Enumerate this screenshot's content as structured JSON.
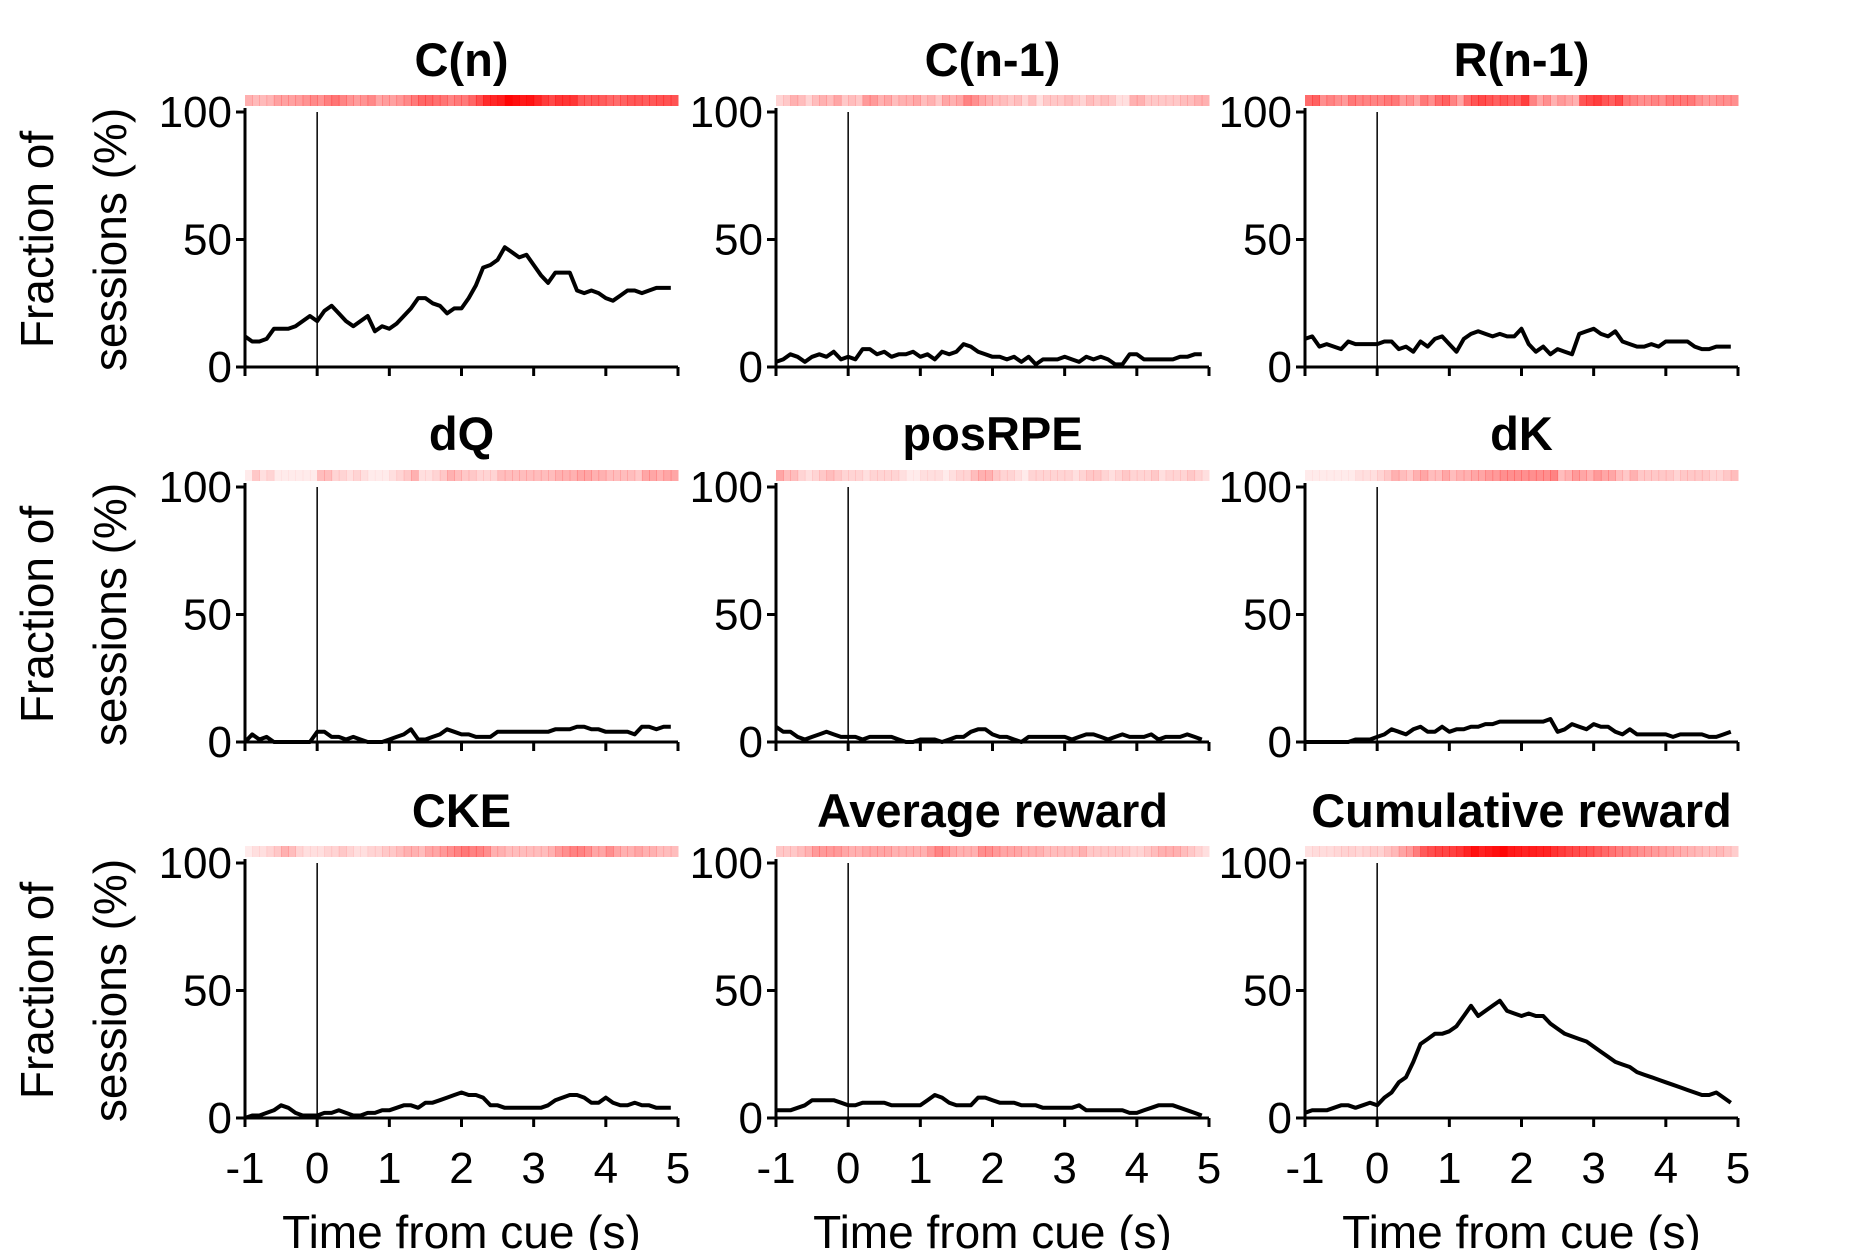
{
  "chart_data": {
    "type": "line",
    "layout": "3x3 grid of panels",
    "xlabel": "Time from cue (s)",
    "ylabel": "Fraction of sessions (%)",
    "ylabel_lines": [
      "Fraction of",
      "sessions (%)"
    ],
    "xlim": [
      -1,
      5
    ],
    "ylim": [
      0,
      100
    ],
    "xticks": [
      -1,
      0,
      1,
      2,
      3,
      4,
      5
    ],
    "yticks": [
      0,
      50,
      100
    ],
    "xtick_labels": [
      "-1",
      "0",
      "1",
      "2",
      "3",
      "4",
      "5"
    ],
    "ytick_labels": [
      "0",
      "50",
      "100"
    ],
    "cue_line_x": 0,
    "line_color": "#000000",
    "heat_color": "#ff0000",
    "x": [
      -1.0,
      -0.9,
      -0.8,
      -0.7,
      -0.6,
      -0.5,
      -0.4,
      -0.3,
      -0.2,
      -0.1,
      0.0,
      0.1,
      0.2,
      0.3,
      0.4,
      0.5,
      0.6,
      0.7,
      0.8,
      0.9,
      1.0,
      1.1,
      1.2,
      1.3,
      1.4,
      1.5,
      1.6,
      1.7,
      1.8,
      1.9,
      2.0,
      2.1,
      2.2,
      2.3,
      2.4,
      2.5,
      2.6,
      2.7,
      2.8,
      2.9,
      3.0,
      3.1,
      3.2,
      3.3,
      3.4,
      3.5,
      3.6,
      3.7,
      3.8,
      3.9,
      4.0,
      4.1,
      4.2,
      4.3,
      4.4,
      4.5,
      4.6,
      4.7,
      4.8,
      4.9
    ],
    "panels": [
      {
        "title": "C(n)",
        "values": [
          12,
          10,
          10,
          11,
          15,
          15,
          15,
          16,
          18,
          20,
          18,
          22,
          24,
          21,
          18,
          16,
          18,
          20,
          14,
          16,
          15,
          17,
          20,
          23,
          27,
          27,
          25,
          24,
          21,
          23,
          23,
          27,
          32,
          39,
          40,
          42,
          47,
          45,
          43,
          44,
          40,
          36,
          33,
          37,
          37,
          37,
          30,
          29,
          30,
          29,
          27,
          26,
          28,
          30,
          30,
          29,
          30,
          31,
          31,
          31
        ]
      },
      {
        "title": "C(n-1)",
        "values": [
          2,
          3,
          5,
          4,
          2,
          4,
          5,
          4,
          6,
          3,
          4,
          3,
          7,
          7,
          5,
          6,
          4,
          5,
          5,
          6,
          4,
          5,
          3,
          6,
          5,
          6,
          9,
          8,
          6,
          5,
          4,
          4,
          3,
          4,
          2,
          4,
          1,
          3,
          3,
          3,
          4,
          3,
          2,
          4,
          3,
          4,
          3,
          1,
          1,
          5,
          5,
          3,
          3,
          3,
          3,
          3,
          4,
          4,
          5,
          5
        ]
      },
      {
        "title": "R(n-1)",
        "values": [
          11,
          12,
          8,
          9,
          8,
          7,
          10,
          9,
          9,
          9,
          9,
          10,
          10,
          7,
          8,
          6,
          10,
          8,
          11,
          12,
          9,
          6,
          11,
          13,
          14,
          13,
          12,
          13,
          12,
          12,
          15,
          9,
          6,
          8,
          5,
          7,
          6,
          5,
          13,
          14,
          15,
          13,
          12,
          14,
          10,
          9,
          8,
          8,
          9,
          8,
          10,
          10,
          10,
          10,
          8,
          7,
          7,
          8,
          8,
          8
        ]
      },
      {
        "title": "dQ",
        "values": [
          0,
          3,
          1,
          2,
          0,
          0,
          0,
          0,
          0,
          0,
          4,
          4,
          2,
          2,
          1,
          2,
          1,
          0,
          0,
          0,
          1,
          2,
          3,
          5,
          1,
          1,
          2,
          3,
          5,
          4,
          3,
          3,
          2,
          2,
          2,
          4,
          4,
          4,
          4,
          4,
          4,
          4,
          4,
          5,
          5,
          5,
          6,
          6,
          5,
          5,
          4,
          4,
          4,
          4,
          3,
          6,
          6,
          5,
          6,
          6
        ]
      },
      {
        "title": "posRPE",
        "values": [
          6,
          4,
          4,
          2,
          1,
          2,
          3,
          4,
          3,
          2,
          2,
          2,
          1,
          2,
          2,
          2,
          2,
          1,
          0,
          0,
          1,
          1,
          1,
          0,
          1,
          2,
          2,
          4,
          5,
          5,
          3,
          2,
          2,
          1,
          0,
          2,
          2,
          2,
          2,
          2,
          2,
          1,
          2,
          3,
          3,
          2,
          1,
          2,
          3,
          2,
          2,
          2,
          3,
          1,
          2,
          2,
          2,
          3,
          2,
          1
        ]
      },
      {
        "title": "dK",
        "values": [
          0,
          0,
          0,
          0,
          0,
          0,
          0,
          1,
          1,
          1,
          2,
          3,
          5,
          4,
          3,
          5,
          6,
          4,
          4,
          6,
          4,
          5,
          5,
          6,
          6,
          7,
          7,
          8,
          8,
          8,
          8,
          8,
          8,
          8,
          9,
          4,
          5,
          7,
          6,
          5,
          7,
          6,
          6,
          4,
          3,
          5,
          3,
          3,
          3,
          3,
          3,
          2,
          3,
          3,
          3,
          3,
          2,
          2,
          3,
          4
        ]
      },
      {
        "title": "CKE",
        "values": [
          0,
          1,
          1,
          2,
          3,
          5,
          4,
          2,
          1,
          1,
          1,
          2,
          2,
          3,
          2,
          1,
          1,
          2,
          2,
          3,
          3,
          4,
          5,
          5,
          4,
          6,
          6,
          7,
          8,
          9,
          10,
          9,
          9,
          8,
          5,
          5,
          4,
          4,
          4,
          4,
          4,
          4,
          5,
          7,
          8,
          9,
          9,
          8,
          6,
          6,
          8,
          6,
          5,
          5,
          6,
          5,
          5,
          4,
          4,
          4
        ]
      },
      {
        "title": "Average reward",
        "values": [
          3,
          3,
          3,
          4,
          5,
          7,
          7,
          7,
          7,
          6,
          5,
          5,
          6,
          6,
          6,
          6,
          5,
          5,
          5,
          5,
          5,
          7,
          9,
          8,
          6,
          5,
          5,
          5,
          8,
          8,
          7,
          6,
          6,
          6,
          5,
          5,
          5,
          4,
          4,
          4,
          4,
          4,
          5,
          3,
          3,
          3,
          3,
          3,
          3,
          2,
          2,
          3,
          4,
          5,
          5,
          5,
          4,
          3,
          2,
          1
        ]
      },
      {
        "title": "Cumulative reward",
        "values": [
          2,
          3,
          3,
          3,
          4,
          5,
          5,
          4,
          5,
          6,
          5,
          8,
          10,
          14,
          16,
          22,
          29,
          31,
          33,
          33,
          34,
          36,
          40,
          44,
          40,
          42,
          44,
          46,
          42,
          41,
          40,
          41,
          40,
          40,
          37,
          35,
          33,
          32,
          31,
          30,
          28,
          26,
          24,
          22,
          21,
          20,
          18,
          17,
          16,
          15,
          14,
          13,
          12,
          11,
          10,
          9,
          9,
          10,
          8,
          6
        ]
      }
    ]
  }
}
